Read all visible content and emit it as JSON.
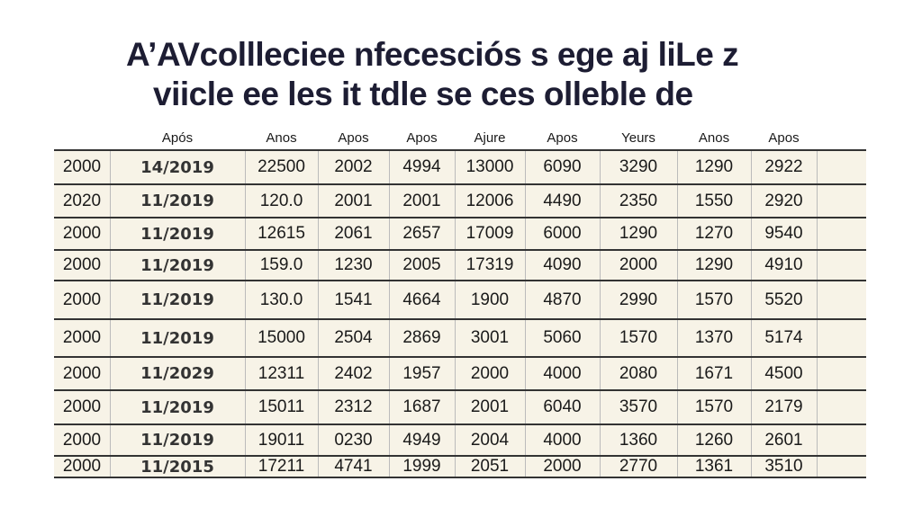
{
  "title": [
    "A’AVcollleciee nfecesciós s ege aj liLe z",
    "viicle ee les it tdle se ces olleble de"
  ],
  "table": {
    "headers": [
      null,
      "Após",
      "Anos",
      "Apos",
      "Apos",
      "Ajure",
      "Apos",
      "Yeurs",
      "Anos",
      "Apos"
    ],
    "rows": [
      [
        "2000",
        "14/2019",
        "22500",
        "2002",
        "4994",
        "13000",
        "6090",
        "3290",
        "1290",
        "2922"
      ],
      [
        "2020",
        "11/2019",
        "120.0",
        "2001",
        "2001",
        "12006",
        "4490",
        "2350",
        "1550",
        "2920"
      ],
      [
        "2000",
        "11/2019",
        "12615",
        "2061",
        "2657",
        "17009",
        "6000",
        "1290",
        "1270",
        "9540"
      ],
      [
        "2000",
        "11/2019",
        "159.0",
        "1230",
        "2005",
        "17319",
        "4090",
        "2000",
        "1290",
        "4910"
      ],
      [
        "2000",
        "11/2019",
        "130.0",
        "1541",
        "4664",
        "1900",
        "4870",
        "2990",
        "1570",
        "5520"
      ],
      [
        "2000",
        "11/2019",
        "15000",
        "2504",
        "2869",
        "3001",
        "5060",
        "1570",
        "1370",
        "5174"
      ],
      [
        "2000",
        "11/2029",
        "12311",
        "2402",
        "1957",
        "2000",
        "4000",
        "2080",
        "1671",
        "4500"
      ],
      [
        "2000",
        "11/2019",
        "15011",
        "2312",
        "1687",
        "2001",
        "6040",
        "3570",
        "1570",
        "2179"
      ],
      [
        "2000",
        "11/2019",
        "19011",
        "0230",
        "4949",
        "2004",
        "4000",
        "1360",
        "1260",
        "2601"
      ],
      [
        "2000",
        "11/2015",
        "17211",
        "4741",
        "1999",
        "2051",
        "2000",
        "2770",
        "1361",
        "3510"
      ]
    ]
  }
}
